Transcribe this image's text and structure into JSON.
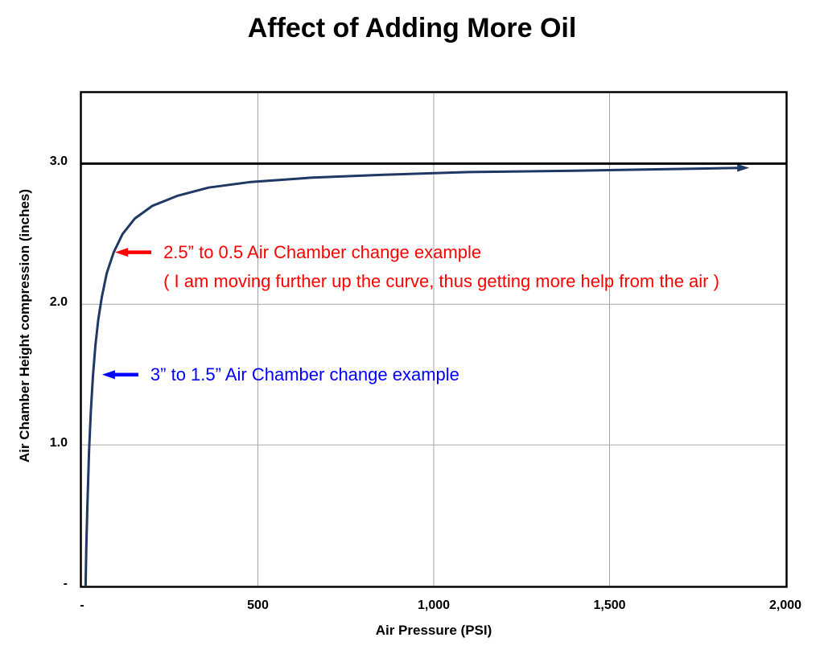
{
  "chart_data": {
    "type": "line",
    "title": "Affect of Adding More Oil",
    "xlabel": "Air Pressure (PSI)",
    "ylabel": "Air Chamber Height compression (inches)",
    "xlim": [
      0,
      2000
    ],
    "ylim": [
      0,
      3.5
    ],
    "grid": true,
    "grid_color": "#A6A6A6",
    "border_color": "#000000",
    "x_ticks": [
      {
        "value": 0,
        "label": "-"
      },
      {
        "value": 500,
        "label": "500"
      },
      {
        "value": 1000,
        "label": "1,000"
      },
      {
        "value": 1500,
        "label": "1,500"
      },
      {
        "value": 2000,
        "label": "2,000"
      }
    ],
    "y_ticks": [
      {
        "value": 0,
        "label": "-"
      },
      {
        "value": 1,
        "label": "1.0"
      },
      {
        "value": 2,
        "label": "2.0"
      },
      {
        "value": 3,
        "label": "3.0"
      }
    ],
    "x_gridlines": [
      500,
      1000,
      1500
    ],
    "y_gridlines": [
      1,
      2
    ],
    "series": [
      {
        "name": "air-spring-compression-curve",
        "color": "#1F3864",
        "width": 3,
        "arrow_end": true,
        "points": [
          [
            10,
            0
          ],
          [
            12,
            0.26
          ],
          [
            15,
            0.57
          ],
          [
            20,
            0.96
          ],
          [
            25,
            1.24
          ],
          [
            31,
            1.49
          ],
          [
            38,
            1.71
          ],
          [
            46,
            1.89
          ],
          [
            56,
            2.05
          ],
          [
            70,
            2.22
          ],
          [
            90,
            2.37
          ],
          [
            115,
            2.5
          ],
          [
            150,
            2.61
          ],
          [
            200,
            2.7
          ],
          [
            270,
            2.77
          ],
          [
            360,
            2.83
          ],
          [
            480,
            2.87
          ],
          [
            650,
            2.9
          ],
          [
            850,
            2.92
          ],
          [
            1100,
            2.94
          ],
          [
            1400,
            2.95
          ],
          [
            1650,
            2.96
          ],
          [
            1870,
            2.97
          ]
        ]
      },
      {
        "name": "max-compression-limit-line",
        "color": "#000000",
        "width": 3,
        "arrow_end": false,
        "points": [
          [
            0,
            3
          ],
          [
            2000,
            3
          ]
        ]
      }
    ],
    "annotations": [
      {
        "id": "red-annotation",
        "color": "#FF0000",
        "arrow": {
          "x": 94,
          "y": 2.37
        },
        "lines": [
          "2.5” to 0.5 Air Chamber change example",
          "( I am moving further up the curve, thus getting more help from the air )"
        ]
      },
      {
        "id": "blue-annotation",
        "color": "#0000FF",
        "arrow": {
          "x": 57,
          "y": 1.5
        },
        "lines": [
          "3” to 1.5” Air Chamber change example"
        ]
      }
    ]
  }
}
